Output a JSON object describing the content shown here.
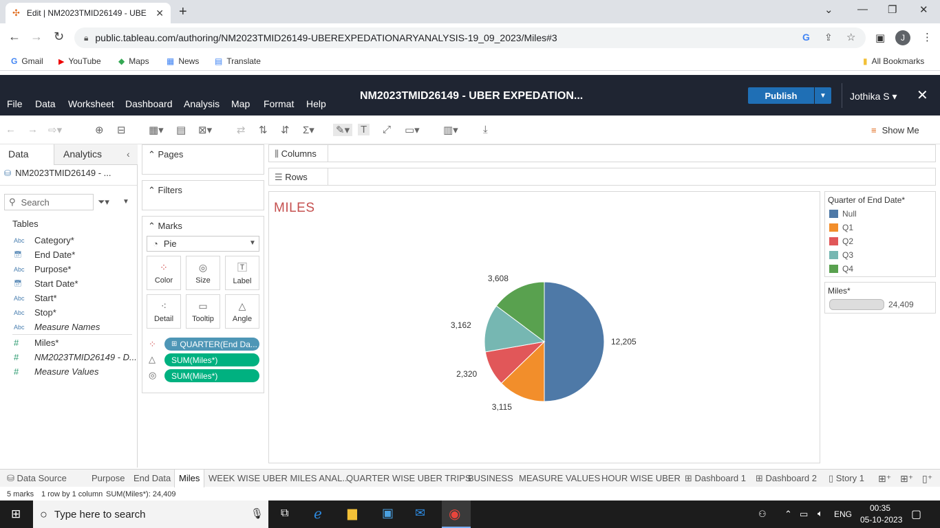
{
  "browser": {
    "tab_title": "Edit | NM2023TMID26149 - UBE",
    "url": "public.tableau.com/authoring/NM2023TMID26149-UBEREXPEDATIONARYANALYSIS-19_09_2023/Miles#3",
    "profile_initial": "J",
    "bookmarks": [
      "Gmail",
      "YouTube",
      "Maps",
      "News",
      "Translate"
    ],
    "all_bookmarks": "All Bookmarks"
  },
  "tableau": {
    "menus": [
      "File",
      "Data",
      "Worksheet",
      "Dashboard",
      "Analysis",
      "Map",
      "Format",
      "Help"
    ],
    "title": "NM2023TMID26149 - UBER EXPEDATION...",
    "publish_label": "Publish",
    "user": "Jothika S ▾",
    "show_me": "Show Me",
    "left_tabs": [
      "Data",
      "Analytics"
    ],
    "datasource": "NM2023TMID26149 - ...",
    "search_placeholder": "Search",
    "tables_label": "Tables",
    "fields": [
      {
        "type": "Abc",
        "name": "Category*"
      },
      {
        "type": "date",
        "name": "End Date*"
      },
      {
        "type": "Abc",
        "name": "Purpose*"
      },
      {
        "type": "date",
        "name": "Start Date*"
      },
      {
        "type": "Abc",
        "name": "Start*"
      },
      {
        "type": "Abc",
        "name": "Stop*"
      },
      {
        "type": "Abc",
        "name": "Measure Names"
      },
      {
        "type": "#",
        "name": "Miles*"
      },
      {
        "type": "#",
        "name": "NM2023TMID26149 - D..."
      },
      {
        "type": "#",
        "name": "Measure Values"
      }
    ],
    "cards": {
      "pages": "Pages",
      "filters": "Filters",
      "marks": "Marks"
    },
    "mark_type": "Pie",
    "mark_buttons": [
      "Color",
      "Size",
      "Label",
      "Detail",
      "Tooltip",
      "Angle"
    ],
    "mark_pills": [
      "QUARTER(End Da...",
      "SUM(Miles*)",
      "SUM(Miles*)"
    ],
    "shelves": {
      "columns": "Columns",
      "rows": "Rows"
    },
    "sheet_title": "MILES",
    "legend": {
      "title": "Quarter of End Date*",
      "items": [
        {
          "label": "Null",
          "color": "#4e79a7"
        },
        {
          "label": "Q1",
          "color": "#f28e2b"
        },
        {
          "label": "Q2",
          "color": "#e15759"
        },
        {
          "label": "Q3",
          "color": "#76b7b2"
        },
        {
          "label": "Q4",
          "color": "#59a14f"
        }
      ]
    },
    "size_legend": {
      "title": "Miles*",
      "value": "24,409"
    },
    "sheet_tabs": [
      "Data Source",
      "Purpose",
      "End Data",
      "Miles",
      "WEEK WISE UBER MILES ANAL...",
      "QUARTER WISE UBER TRIPS",
      "BUSINESS",
      "MEASURE VALUES",
      "HOUR WISE UBER",
      "Dashboard 1",
      "Dashboard 2",
      "Story 1"
    ],
    "status": {
      "marks": "5 marks",
      "dims": "1 row by 1 column",
      "sum": "SUM(Miles*): 24,409"
    }
  },
  "chart_data": {
    "type": "pie",
    "title": "MILES",
    "categories": [
      "Null",
      "Q1",
      "Q2",
      "Q3",
      "Q4"
    ],
    "values": [
      12205,
      3115,
      2320,
      3162,
      3608
    ],
    "labels": [
      "12,205",
      "3,115",
      "2,320",
      "3,162",
      "3,608"
    ],
    "colors": [
      "#4e79a7",
      "#f28e2b",
      "#e15759",
      "#76b7b2",
      "#59a14f"
    ],
    "legend": "right"
  },
  "taskbar": {
    "search_placeholder": "Type here to search",
    "lang": "ENG",
    "time": "00:35",
    "date": "05-10-2023"
  }
}
